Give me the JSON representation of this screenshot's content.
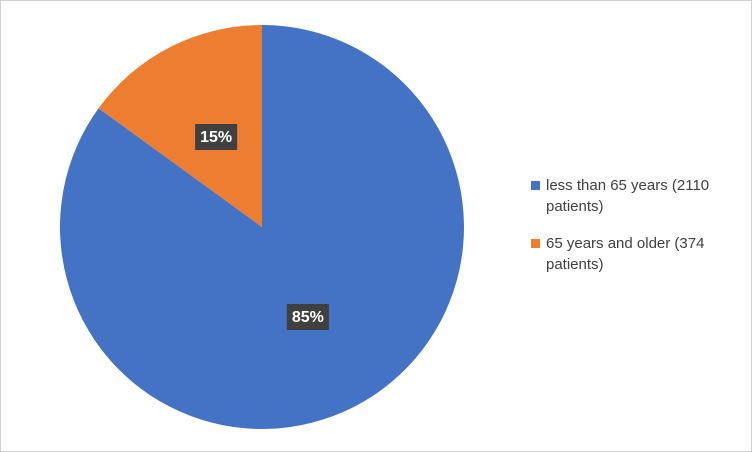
{
  "chart_data": {
    "type": "pie",
    "categories": [
      "less than 65 years (2110 patients)",
      "65 years and older (374 patients)"
    ],
    "values": [
      85,
      15
    ],
    "value_labels": [
      "85%",
      "15%"
    ],
    "colors": [
      "#4472c4",
      "#ed7d31"
    ],
    "legend": "right"
  }
}
